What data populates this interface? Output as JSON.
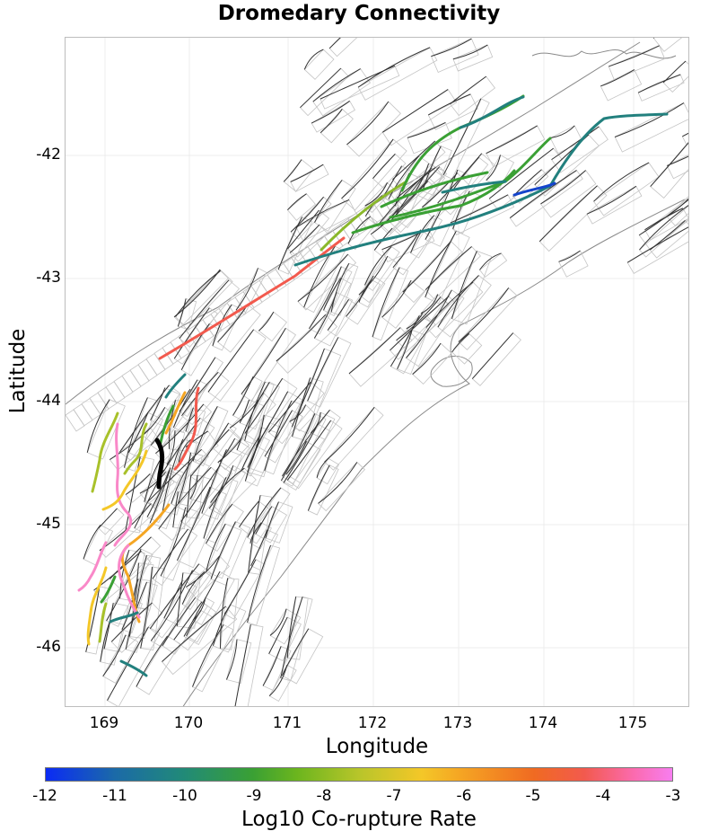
{
  "title": "Dromedary Connectivity",
  "x_axis": {
    "label": "Longitude",
    "ticks": [
      "169",
      "170",
      "171",
      "172",
      "173",
      "174",
      "175"
    ]
  },
  "y_axis": {
    "label": "Latitude",
    "ticks": [
      "-42",
      "-43",
      "-44",
      "-45",
      "-46"
    ]
  },
  "colorbar": {
    "label": "Log10 Co-rupture Rate",
    "ticks": [
      "-12",
      "-11",
      "-10",
      "-9",
      "-8",
      "-7",
      "-6",
      "-5",
      "-4",
      "-3"
    ],
    "range": [
      -12,
      -3
    ]
  },
  "colors": {
    "salmon": "#f25a4e",
    "green": "#3aa034",
    "teal": "#22807e",
    "blue": "#1444cc",
    "yellow": "#f4c728",
    "olive": "#a8c12a",
    "pink": "#f988c8",
    "black": "#000000",
    "coast": "#8a8a8a",
    "fault": "#333333",
    "patch": "#bdbdbd"
  }
}
